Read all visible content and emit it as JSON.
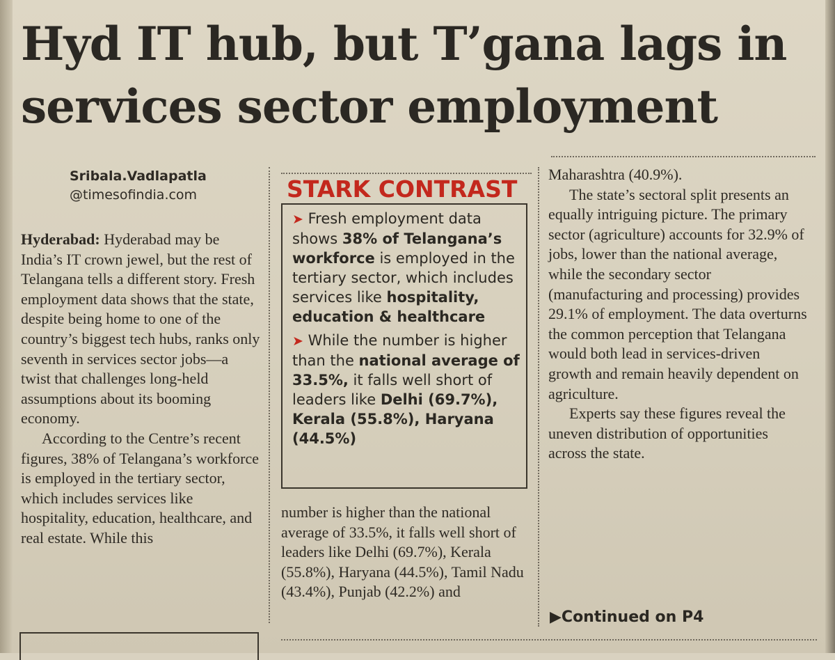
{
  "headline": "Hyd IT hub, but T’gana lags in services sector employment",
  "byline": {
    "name": "Sribala.Vadlapatla",
    "email": "@timesofindia.com"
  },
  "column1": {
    "dateline": "Hyderabad:",
    "para1": "Hyderabad may be India’s IT crown jewel, but the rest of Telangana tells a different story. Fresh employment data shows that the state, despite being home to one of the country’s biggest tech hubs, ranks only seventh in services sector jobs—a twist that challenges long-held assumptions about its booming economy.",
    "para2": "According to the Centre’s recent figures, 38% of Telangana’s workforce is employed in the tertiary sector, which includes services like hospitality, education, healthcare, and real estate. While this"
  },
  "sidebar": {
    "title": "STARK CONTRAST",
    "arrow": "➤",
    "item1": {
      "t1": "Fresh employment data shows ",
      "b1": "38% of Telangana’s workforce",
      "t2": " is employed in the tertiary sector, which includes services like ",
      "b2": "hospitality, education & healthcare"
    },
    "item2": {
      "t1": "While the number is higher than the ",
      "b1": "national average of 33.5%,",
      "t2": " it falls well short of leaders like ",
      "b2": "Delhi (69.7%), Kerala (55.8%), Haryana (44.5%)"
    }
  },
  "column2": {
    "para": "number is higher than the national average of 33.5%, it falls well short of leaders like Delhi (69.7%), Kerala (55.8%), Haryana (44.5%), Tamil Nadu (43.4%), Punjab (42.2%) and"
  },
  "column3": {
    "para0": "Maharashtra (40.9%).",
    "para1": "The state’s sectoral split presents an equally intriguing picture. The primary sector (agriculture) accounts for 32.9% of jobs, lower than the national average, while the secondary sector (manufacturing and processing) provides 29.1% of employment. The data overturns the common perception that Telangana would both lead in services-driven growth and remain heavily dependent on agriculture.",
    "para2": "Experts say these figures reveal the uneven distribution of opportunities across the state."
  },
  "continued": "▶Continued on P4"
}
